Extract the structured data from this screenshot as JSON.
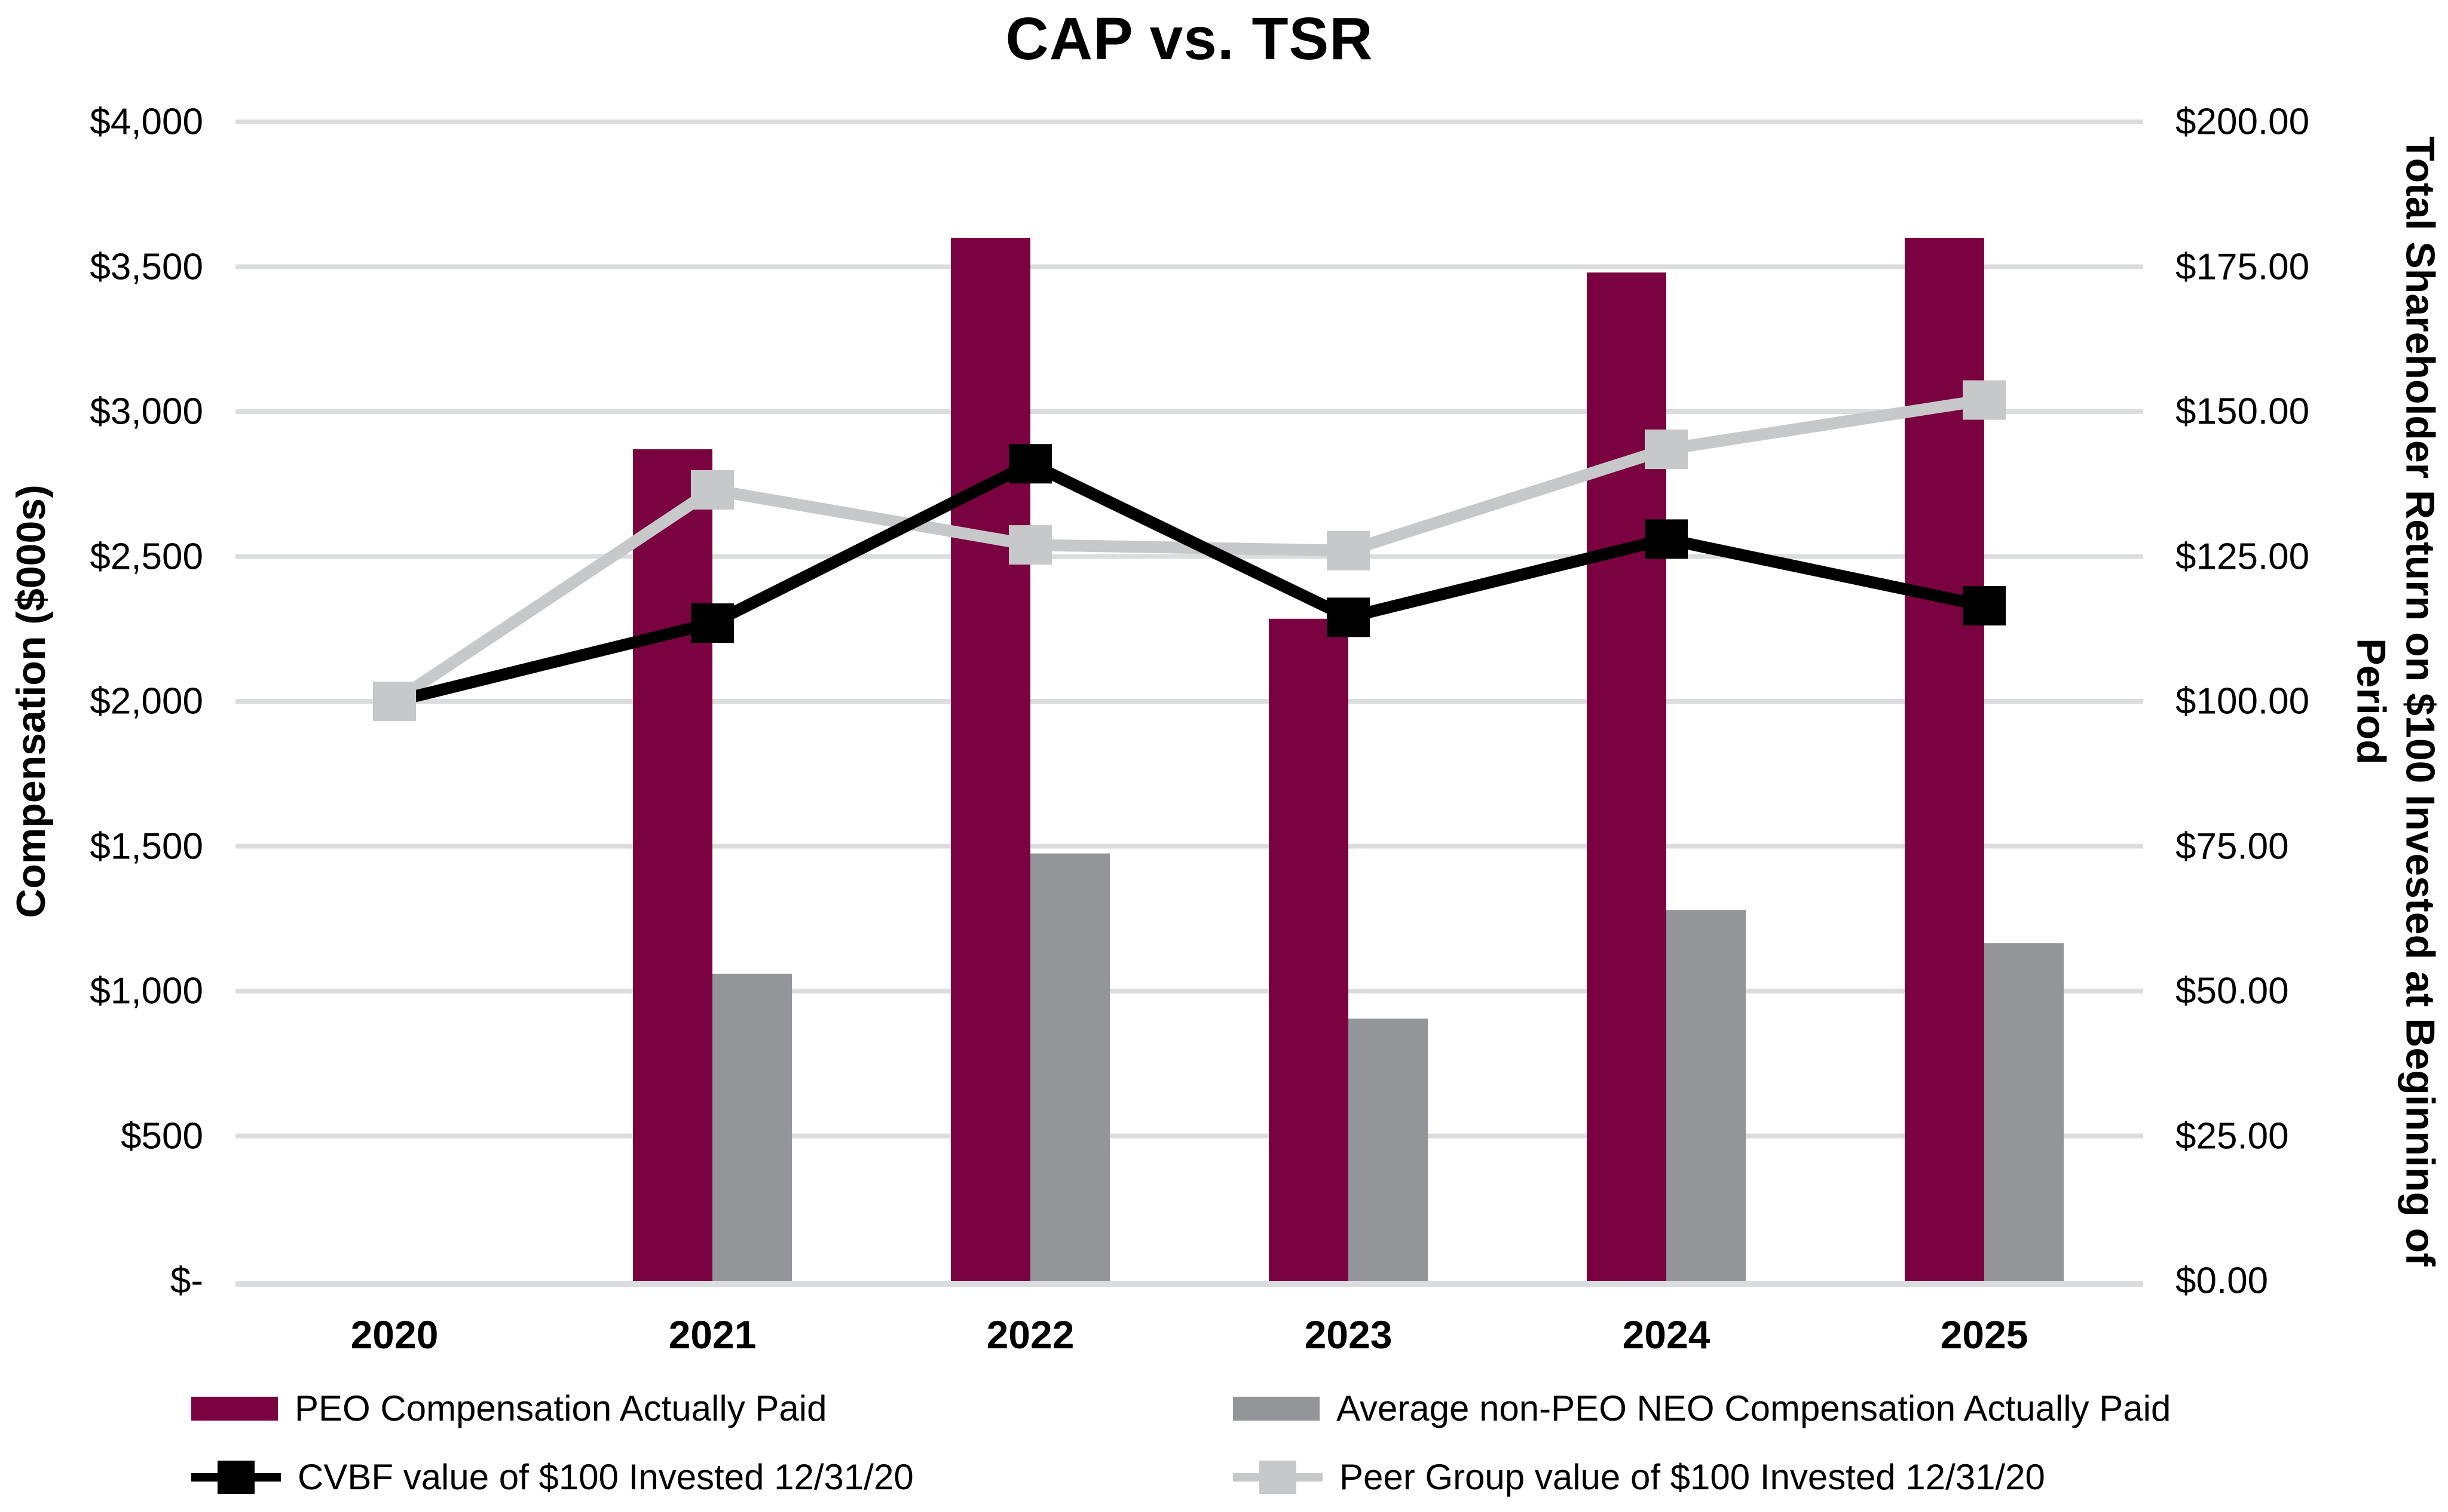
{
  "title": "CAP vs. TSR",
  "left_axis": {
    "title": "Compensation ($000s)",
    "ticks": [
      "$4,000",
      "$3,500",
      "$3,000",
      "$2,500",
      "$2,000",
      "$1,500",
      "$1,000",
      "$500",
      "$-"
    ]
  },
  "right_axis": {
    "title": "Total Shareholder Return on $100 Invested at Beginning of Period",
    "title_lines": [
      "Total Shareholder Return on $100 Invested at Beginning of",
      "Period"
    ],
    "ticks": [
      "$200.00",
      "$175.00",
      "$150.00",
      "$125.00",
      "$100.00",
      "$75.00",
      "$50.00",
      "$25.00",
      "$0.00"
    ]
  },
  "x_axis": {
    "categories": [
      "2020",
      "2021",
      "2022",
      "2023",
      "2024",
      "2025"
    ]
  },
  "legend": {
    "peo_label": "PEO Compensation Actually Paid",
    "neo_label": "Average non-PEO NEO Compensation Actually Paid",
    "cvbf_label": "CVBF value of $100 Invested 12/31/20",
    "peer_label": "Peer Group value of $100 Invested 12/31/20"
  },
  "colors": {
    "peo_bar": "#7A0240",
    "neo_bar": "#939598",
    "cvbf_line": "#000000",
    "peer_line": "#C7C8CA",
    "gridline": "#DBDCDE",
    "axis_line": "#DBDCDE",
    "background": "#FFFFFF",
    "text": "#000000"
  },
  "chart_data": {
    "type": "combo",
    "subtypes": [
      "bar",
      "line"
    ],
    "title": "CAP vs. TSR",
    "categories": [
      "2020",
      "2021",
      "2022",
      "2023",
      "2024",
      "2025"
    ],
    "series": [
      {
        "name": "PEO Compensation Actually Paid",
        "type": "bar",
        "axis": "left",
        "color": "#7A0240",
        "values": [
          null,
          2870,
          3600,
          2285,
          3480,
          3600
        ]
      },
      {
        "name": "Average non-PEO NEO Compensation Actually Paid",
        "type": "bar",
        "axis": "left",
        "color": "#939598",
        "values": [
          null,
          1060,
          1475,
          905,
          1280,
          1165
        ]
      },
      {
        "name": "CVBF value of $100 Invested 12/31/20",
        "type": "line",
        "axis": "right",
        "color": "#000000",
        "values": [
          100,
          113.5,
          141,
          114.5,
          128,
          116.5
        ]
      },
      {
        "name": "Peer Group value of $100 Invested 12/31/20",
        "type": "line",
        "axis": "right",
        "color": "#C7C8CA",
        "values": [
          100,
          136.5,
          127,
          126,
          143.5,
          152
        ]
      }
    ],
    "left_ylabel": "Compensation ($000s)",
    "right_ylabel": "Total Shareholder Return on $100 Invested at Beginning of Period",
    "left_ylim": [
      0,
      4000
    ],
    "left_step": 500,
    "right_ylim": [
      0,
      200
    ],
    "right_step": 25,
    "grid": true,
    "legend_position": "bottom"
  }
}
